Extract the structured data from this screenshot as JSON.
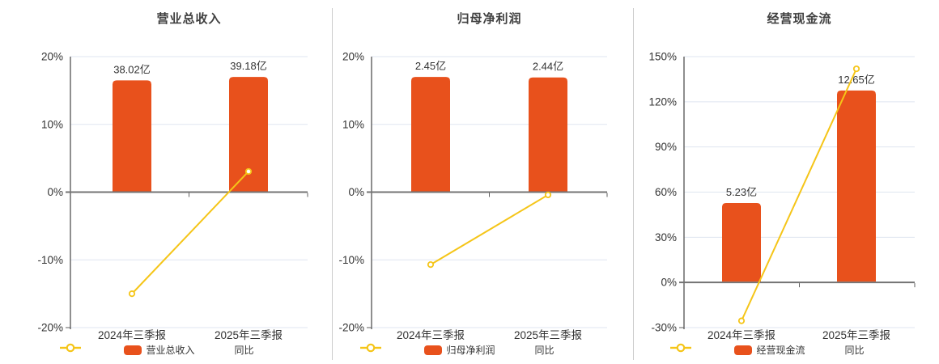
{
  "colors": {
    "bar": "#e8511c",
    "line": "#f5c518",
    "grid": "#dfe5f0",
    "axis": "#5f5f5f",
    "zero_line": "#737373",
    "text": "#333333",
    "title": "#404040",
    "divider": "#cccccc",
    "marker_fill": "#ffffff",
    "background": "#ffffff"
  },
  "chart_data": [
    {
      "type": "bar",
      "title": "营业总收入",
      "categories": [
        "2024年三季报",
        "2025年三季报"
      ],
      "bar_series": {
        "name": "营业总收入",
        "unit": "亿",
        "values": [
          38.02,
          39.18
        ],
        "labels": [
          "38.02亿",
          "39.18亿"
        ]
      },
      "line_series": {
        "name": "同比",
        "values_pct": [
          -15.0,
          3.05
        ]
      },
      "ylabel": "",
      "xlabel": "",
      "ylim": [
        -20,
        20
      ],
      "y_tick_values": [
        20,
        10,
        0,
        -10,
        -20
      ],
      "y_tick_labels": [
        "20%",
        "10%",
        "0%",
        "-10%",
        "-20%"
      ],
      "grid": true,
      "legend_position": "bottom"
    },
    {
      "type": "bar",
      "title": "归母净利润",
      "categories": [
        "2024年三季报",
        "2025年三季报"
      ],
      "bar_series": {
        "name": "归母净利润",
        "unit": "亿",
        "values": [
          2.45,
          2.44
        ],
        "labels": [
          "2.45亿",
          "2.44亿"
        ]
      },
      "line_series": {
        "name": "同比",
        "values_pct": [
          -10.7,
          -0.41
        ]
      },
      "ylabel": "",
      "xlabel": "",
      "ylim": [
        -20,
        20
      ],
      "y_tick_values": [
        20,
        10,
        0,
        -10,
        -20
      ],
      "y_tick_labels": [
        "20%",
        "10%",
        "0%",
        "-10%",
        "-20%"
      ],
      "grid": true,
      "legend_position": "bottom"
    },
    {
      "type": "bar",
      "title": "经营现金流",
      "categories": [
        "2024年三季报",
        "2025年三季报"
      ],
      "bar_series": {
        "name": "经营现金流",
        "unit": "亿",
        "values": [
          5.23,
          12.65
        ],
        "labels": [
          "5.23亿",
          "12.65亿"
        ]
      },
      "line_series": {
        "name": "同比",
        "values_pct": [
          -25.5,
          141.9
        ]
      },
      "ylabel": "",
      "xlabel": "",
      "ylim": [
        -30,
        150
      ],
      "y_tick_values": [
        150,
        120,
        90,
        60,
        30,
        0,
        -30
      ],
      "y_tick_labels": [
        "150%",
        "120%",
        "90%",
        "60%",
        "30%",
        "0%",
        "-30%"
      ],
      "grid": true,
      "legend_position": "bottom"
    }
  ]
}
